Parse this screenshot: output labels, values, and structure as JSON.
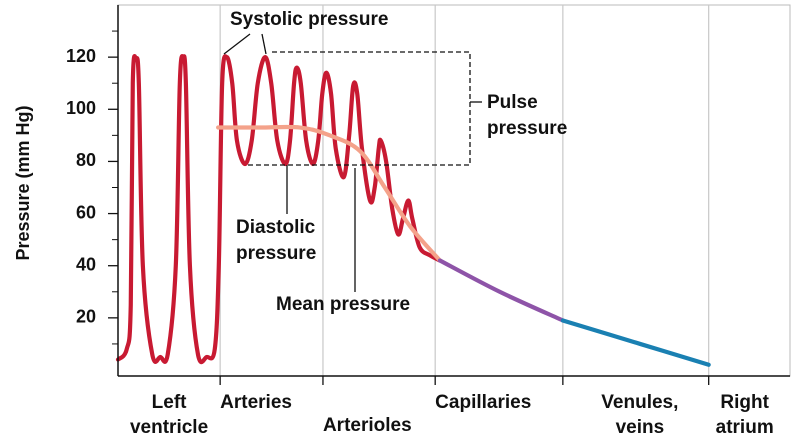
{
  "chart_data": {
    "type": "line",
    "ylabel": "Pressure (mm Hg)",
    "ylim": [
      0,
      140
    ],
    "yticks": [
      20,
      40,
      60,
      80,
      100,
      120
    ],
    "yminorticks": [
      10,
      30,
      50,
      70,
      90,
      110,
      130
    ],
    "xlim": [
      0,
      100
    ],
    "xticks": [
      {
        "value": 15.2,
        "label": "Arteries"
      },
      {
        "value": 30.5,
        "label": "Arterioles"
      },
      {
        "value": 47.2,
        "label": "Capillaries"
      },
      {
        "value": 66.2,
        "label": "Venules, veins"
      },
      {
        "value": 87.9,
        "label": "Right atrium"
      }
    ],
    "x_start_label": "Left ventricle",
    "grid": true,
    "annotations": [
      "Systolic pressure",
      "Pulse pressure",
      "Diastolic pressure",
      "Mean pressure"
    ],
    "series": [
      {
        "color": "#c81a32",
        "x": [
          0,
          1.3,
          1.9,
          2.2,
          2.7,
          3.1,
          3.7,
          5.1,
          6.3,
          7.4,
          8.6,
          9.2,
          9.7,
          10.1,
          10.7,
          11.9,
          13.2,
          14.4,
          15.0,
          15.5,
          16.2,
          17.0,
          17.7,
          18.9,
          19.9,
          20.8,
          21.9,
          22.8,
          23.7,
          24.9,
          25.6,
          26.2,
          26.6,
          27.2,
          28.0,
          29.0,
          29.8,
          30.4,
          31.0,
          31.7,
          32.4,
          33.6,
          34.4,
          35.0,
          35.6,
          36.3,
          37.5,
          38.2,
          38.8,
          39.1,
          39.9,
          40.8,
          41.7,
          42.4,
          43.2,
          43.8,
          44.9,
          46.4,
          47.9
        ],
        "values": [
          4,
          8,
          25,
          110,
          119,
          110,
          40,
          6,
          5,
          6,
          40,
          110,
          120,
          110,
          40,
          6,
          5,
          8,
          40,
          110,
          120,
          110,
          88,
          79,
          88,
          110,
          120,
          110,
          88,
          79,
          88,
          110,
          116,
          110,
          88,
          79,
          88,
          106,
          114,
          106,
          85,
          74,
          90,
          109,
          106,
          85,
          65,
          70,
          85,
          88,
          80,
          62,
          52,
          58,
          65,
          58,
          47,
          44,
          42
        ]
      },
      {
        "color": "#f4a28a",
        "x": [
          14.9,
          21.1,
          27.1,
          31.5,
          36.0,
          39.7,
          43.5,
          47.9
        ],
        "values": [
          93,
          93,
          93,
          90,
          84,
          70,
          55,
          42
        ]
      },
      {
        "color": "#8e54a8",
        "x": [
          47.9,
          56.8,
          66.2
        ],
        "values": [
          42,
          30,
          19
        ]
      },
      {
        "color": "#1a80b2",
        "x": [
          66.2,
          77.7,
          87.9
        ],
        "values": [
          19,
          10,
          2
        ]
      }
    ]
  }
}
